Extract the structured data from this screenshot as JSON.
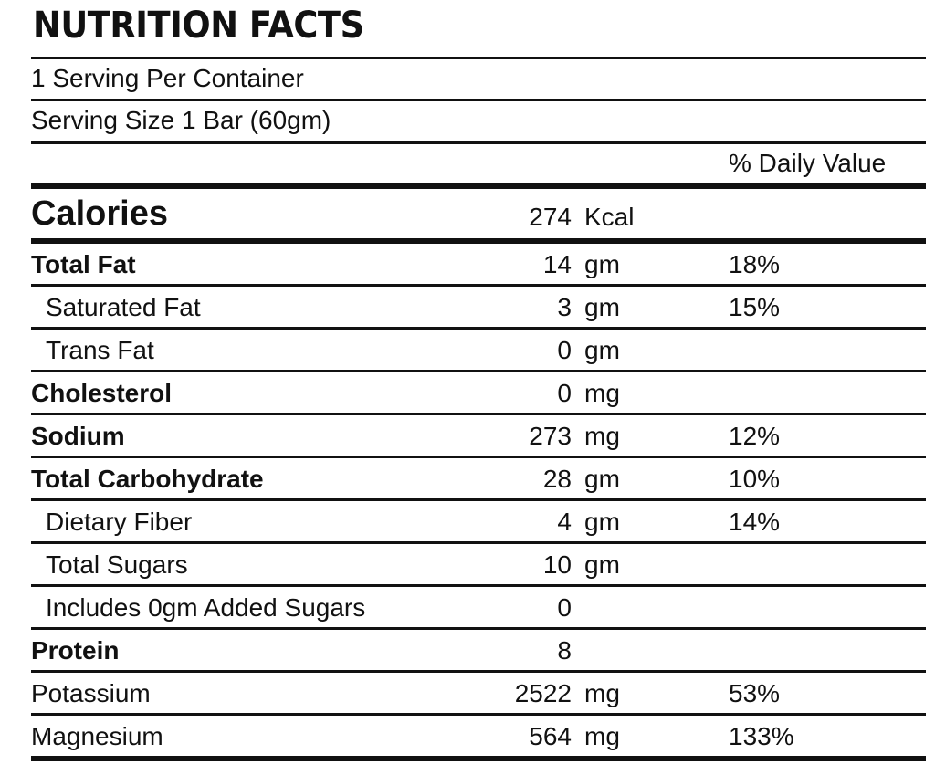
{
  "title": "NUTRITION FACTS",
  "servings_per_container": "1 Serving Per Container",
  "serving_size": "Serving Size 1 Bar (60gm)",
  "daily_value_header": "% Daily Value",
  "calories": {
    "label": "Calories",
    "amount": "274",
    "unit": "Kcal"
  },
  "nutrients": [
    {
      "name": "Total Fat",
      "amount": "14",
      "unit": "gm",
      "dv": "18%"
    },
    {
      "name": "Saturated Fat",
      "amount": "3",
      "unit": "gm",
      "dv": "15%"
    },
    {
      "name": "Trans Fat",
      "amount": "0",
      "unit": "gm",
      "dv": ""
    },
    {
      "name": "Cholesterol",
      "amount": "0",
      "unit": "mg",
      "dv": ""
    },
    {
      "name": "Sodium",
      "amount": "273",
      "unit": "mg",
      "dv": "12%"
    },
    {
      "name": "Total Carbohydrate",
      "amount": "28",
      "unit": "gm",
      "dv": "10%"
    },
    {
      "name": "Dietary Fiber",
      "amount": "4",
      "unit": "gm",
      "dv": "14%"
    },
    {
      "name": "Total Sugars",
      "amount": "10",
      "unit": "gm",
      "dv": ""
    },
    {
      "name": "Includes 0gm Added Sugars",
      "amount": "0",
      "unit": "",
      "dv": ""
    },
    {
      "name": "Protein",
      "amount": "8",
      "unit": "",
      "dv": ""
    },
    {
      "name": "Potassium",
      "amount": "2522",
      "unit": "mg",
      "dv": "53%"
    },
    {
      "name": "Magnesium",
      "amount": "564",
      "unit": "mg",
      "dv": "133%"
    }
  ]
}
